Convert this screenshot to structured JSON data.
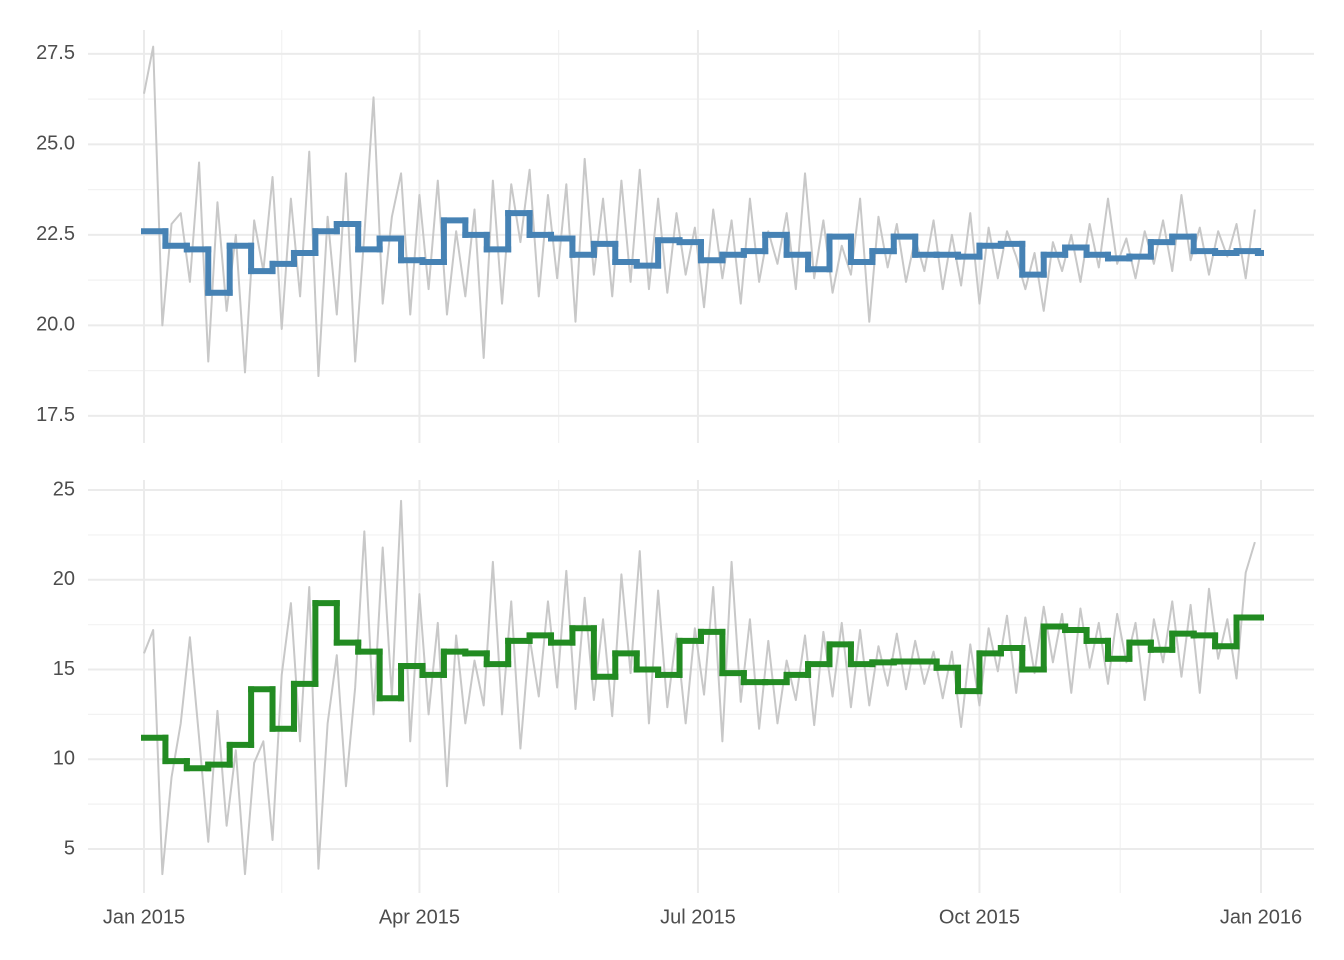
{
  "chart_data": [
    {
      "type": "line",
      "xlim": [
        0,
        365
      ],
      "xticks": [
        0,
        90,
        181,
        273,
        365
      ],
      "ylim": [
        16.75,
        28.16
      ],
      "yticks": [
        17.5,
        {
          "value": 20,
          "label": "20.0"
        },
        22.5,
        {
          "value": 25,
          "label": "25.0"
        },
        27.5
      ],
      "grid": true,
      "series": [
        {
          "color": "#c8c8c8",
          "style": "line",
          "x": [
            0,
            3,
            6,
            9,
            12,
            15,
            18,
            21,
            24,
            27,
            30,
            33,
            36,
            39,
            42,
            45,
            48,
            51,
            54,
            57,
            60,
            63,
            66,
            69,
            72,
            75,
            78,
            81,
            84,
            87,
            90,
            93,
            96,
            99,
            102,
            105,
            108,
            111,
            114,
            117,
            120,
            123,
            126,
            129,
            132,
            135,
            138,
            141,
            144,
            147,
            150,
            153,
            156,
            159,
            162,
            165,
            168,
            171,
            174,
            177,
            180,
            183,
            186,
            189,
            192,
            195,
            198,
            201,
            204,
            207,
            210,
            213,
            216,
            219,
            222,
            225,
            228,
            231,
            234,
            237,
            240,
            243,
            246,
            249,
            252,
            255,
            258,
            261,
            264,
            267,
            270,
            273,
            276,
            279,
            282,
            285,
            288,
            291,
            294,
            297,
            300,
            303,
            306,
            309,
            312,
            315,
            318,
            321,
            324,
            327,
            330,
            333,
            336,
            339,
            342,
            345,
            348,
            351,
            354,
            357,
            360,
            363
          ],
          "values": [
            26.4,
            27.7,
            20.0,
            22.8,
            23.1,
            21.2,
            24.5,
            19.0,
            23.4,
            20.4,
            22.5,
            18.7,
            22.9,
            21.5,
            24.1,
            19.9,
            23.5,
            20.8,
            24.8,
            18.6,
            23.0,
            20.3,
            24.2,
            19.0,
            22.5,
            26.3,
            20.6,
            23.0,
            24.2,
            20.3,
            23.6,
            21.0,
            24.0,
            20.3,
            22.6,
            20.8,
            23.2,
            19.1,
            24.0,
            20.6,
            23.9,
            22.3,
            24.3,
            20.8,
            23.6,
            21.3,
            23.9,
            20.1,
            24.6,
            21.4,
            23.5,
            20.8,
            24.0,
            21.2,
            24.3,
            21.0,
            23.5,
            20.9,
            23.1,
            21.4,
            22.7,
            20.5,
            23.2,
            21.3,
            22.9,
            20.6,
            23.5,
            21.2,
            22.6,
            21.7,
            23.1,
            21.0,
            24.2,
            21.3,
            22.9,
            20.9,
            22.2,
            21.4,
            23.5,
            20.1,
            23.0,
            21.6,
            22.8,
            21.2,
            22.4,
            21.5,
            22.9,
            21.0,
            22.5,
            21.1,
            23.1,
            20.6,
            22.7,
            21.3,
            22.6,
            21.9,
            21.0,
            22.0,
            20.4,
            22.3,
            21.5,
            22.5,
            21.2,
            22.8,
            21.6,
            23.5,
            21.7,
            22.4,
            21.3,
            22.6,
            21.7,
            22.9,
            21.5,
            23.6,
            21.8,
            22.7,
            21.4,
            22.6,
            21.9,
            22.8,
            21.3,
            23.2
          ]
        },
        {
          "color": "#4682b4",
          "style": "step",
          "x": [
            0,
            7,
            14,
            21,
            28,
            35,
            42,
            49,
            56,
            63,
            70,
            77,
            84,
            91,
            98,
            105,
            112,
            119,
            126,
            133,
            140,
            147,
            154,
            161,
            168,
            175,
            182,
            189,
            196,
            203,
            210,
            217,
            224,
            231,
            238,
            245,
            252,
            259,
            266,
            273,
            280,
            287,
            294,
            301,
            308,
            315,
            322,
            329,
            336,
            343,
            350,
            357,
            364
          ],
          "values": [
            22.6,
            22.2,
            22.1,
            20.9,
            22.2,
            21.5,
            21.7,
            22.0,
            22.6,
            22.8,
            22.1,
            22.4,
            21.8,
            21.75,
            22.9,
            22.5,
            22.1,
            23.1,
            22.5,
            22.4,
            21.95,
            22.25,
            21.75,
            21.65,
            22.35,
            22.3,
            21.8,
            21.95,
            22.05,
            22.5,
            21.95,
            21.55,
            22.45,
            21.75,
            22.05,
            22.45,
            21.95,
            21.95,
            21.9,
            22.2,
            22.25,
            21.4,
            21.95,
            22.15,
            21.95,
            21.85,
            21.9,
            22.3,
            22.45,
            22.05,
            22.0,
            22.05,
            22.0
          ]
        }
      ]
    },
    {
      "type": "line",
      "xlim": [
        0,
        365
      ],
      "xticks": [
        {
          "value": 0,
          "label": "Jan 2015"
        },
        {
          "value": 90,
          "label": "Apr 2015"
        },
        {
          "value": 181,
          "label": "Jul 2015"
        },
        {
          "value": 273,
          "label": "Oct 2015"
        },
        {
          "value": 365,
          "label": "Jan 2016"
        }
      ],
      "ylim": [
        2.55,
        25.56
      ],
      "yticks": [
        5,
        10,
        15,
        20,
        25
      ],
      "grid": true,
      "series": [
        {
          "color": "#c8c8c8",
          "style": "line",
          "x": [
            0,
            3,
            6,
            9,
            12,
            15,
            18,
            21,
            24,
            27,
            30,
            33,
            36,
            39,
            42,
            45,
            48,
            51,
            54,
            57,
            60,
            63,
            66,
            69,
            72,
            75,
            78,
            81,
            84,
            87,
            90,
            93,
            96,
            99,
            102,
            105,
            108,
            111,
            114,
            117,
            120,
            123,
            126,
            129,
            132,
            135,
            138,
            141,
            144,
            147,
            150,
            153,
            156,
            159,
            162,
            165,
            168,
            171,
            174,
            177,
            180,
            183,
            186,
            189,
            192,
            195,
            198,
            201,
            204,
            207,
            210,
            213,
            216,
            219,
            222,
            225,
            228,
            231,
            234,
            237,
            240,
            243,
            246,
            249,
            252,
            255,
            258,
            261,
            264,
            267,
            270,
            273,
            276,
            279,
            282,
            285,
            288,
            291,
            294,
            297,
            300,
            303,
            306,
            309,
            312,
            315,
            318,
            321,
            324,
            327,
            330,
            333,
            336,
            339,
            342,
            345,
            348,
            351,
            354,
            357,
            360,
            363
          ],
          "values": [
            15.9,
            17.2,
            3.6,
            9.0,
            12.0,
            16.8,
            11.2,
            5.4,
            12.7,
            6.3,
            10.5,
            3.6,
            9.8,
            11.0,
            5.5,
            14.7,
            18.7,
            11.0,
            19.6,
            3.9,
            12.0,
            15.8,
            8.5,
            14.0,
            22.7,
            12.5,
            21.8,
            13.5,
            24.4,
            11.0,
            19.2,
            12.5,
            17.6,
            8.5,
            16.9,
            12.0,
            15.5,
            13.0,
            21.0,
            12.5,
            18.8,
            10.6,
            16.8,
            13.5,
            18.8,
            14.0,
            20.5,
            12.8,
            19.0,
            13.3,
            17.8,
            12.4,
            20.3,
            14.8,
            21.6,
            12.0,
            19.4,
            12.9,
            17.0,
            12.0,
            17.3,
            13.6,
            19.6,
            11.0,
            21.0,
            13.2,
            17.8,
            11.7,
            16.6,
            12.0,
            15.5,
            13.3,
            16.9,
            11.9,
            17.1,
            13.5,
            17.6,
            12.9,
            17.2,
            13.0,
            16.3,
            14.1,
            17.0,
            13.9,
            16.6,
            14.2,
            16.0,
            13.4,
            16.0,
            11.8,
            16.4,
            13.0,
            17.3,
            14.9,
            18.0,
            13.7,
            17.9,
            14.8,
            18.5,
            15.4,
            18.1,
            13.7,
            18.4,
            15.1,
            17.6,
            14.2,
            18.1,
            15.4,
            17.6,
            13.3,
            17.8,
            15.4,
            18.8,
            14.6,
            18.6,
            13.7,
            19.5,
            15.6,
            17.8,
            14.5,
            20.4,
            22.1
          ]
        },
        {
          "color": "#228b22",
          "style": "step",
          "x": [
            0,
            7,
            14,
            21,
            28,
            35,
            42,
            49,
            56,
            63,
            70,
            77,
            84,
            91,
            98,
            105,
            112,
            119,
            126,
            133,
            140,
            147,
            154,
            161,
            168,
            175,
            182,
            189,
            196,
            203,
            210,
            217,
            224,
            231,
            238,
            245,
            252,
            259,
            266,
            273,
            280,
            287,
            294,
            301,
            308,
            315,
            322,
            329,
            336,
            343,
            350,
            357,
            364
          ],
          "values": [
            11.2,
            9.9,
            9.5,
            9.7,
            10.8,
            13.9,
            11.7,
            14.2,
            18.7,
            16.5,
            16.0,
            13.4,
            15.2,
            14.7,
            16.0,
            15.9,
            15.3,
            16.6,
            16.9,
            16.5,
            17.3,
            14.6,
            15.9,
            15.0,
            14.7,
            16.6,
            17.1,
            14.8,
            14.3,
            14.3,
            14.7,
            15.3,
            16.4,
            15.3,
            15.4,
            15.45,
            15.45,
            15.1,
            13.8,
            15.9,
            16.2,
            15.0,
            17.4,
            17.2,
            16.6,
            15.6,
            16.5,
            16.1,
            17.0,
            16.9,
            16.3,
            17.9,
            17.9
          ]
        }
      ]
    }
  ]
}
